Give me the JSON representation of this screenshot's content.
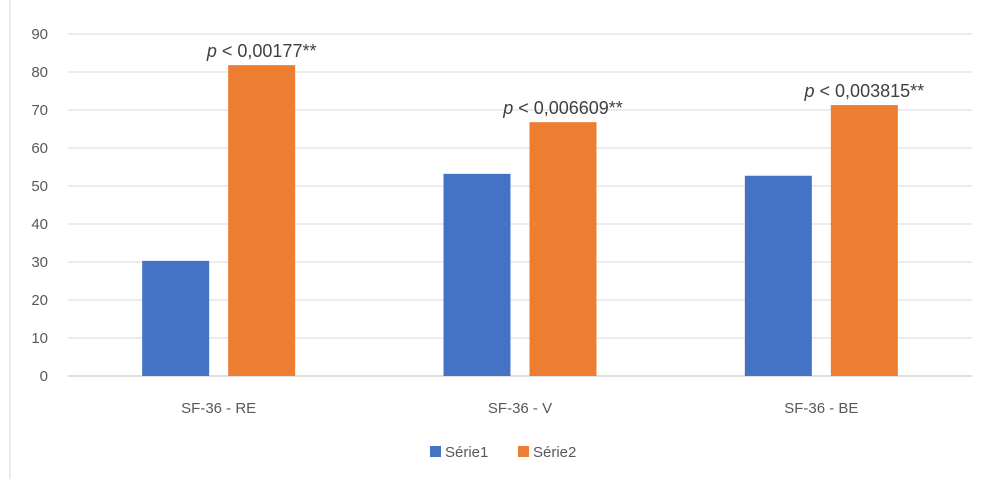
{
  "chart_data": {
    "type": "bar",
    "categories": [
      "SF-36 - RE",
      "SF-36 - V",
      "SF-36 - BE"
    ],
    "series": [
      {
        "name": "Série1",
        "values": [
          30.3,
          53.2,
          52.7
        ],
        "color": "#4472c4"
      },
      {
        "name": "Série2",
        "values": [
          81.8,
          66.8,
          71.3
        ],
        "color": "#ed7d31"
      }
    ],
    "yticks": [
      0,
      10,
      20,
      30,
      40,
      50,
      60,
      70,
      80,
      90
    ],
    "ylim": [
      0,
      90
    ],
    "grid": true,
    "legend_position": "bottom",
    "annotations": [
      {
        "prefix": "p",
        "text": " < 0,00177**"
      },
      {
        "prefix": "p",
        "text": " < 0,006609**"
      },
      {
        "prefix": "p",
        "text": " < 0,003815**"
      }
    ]
  }
}
